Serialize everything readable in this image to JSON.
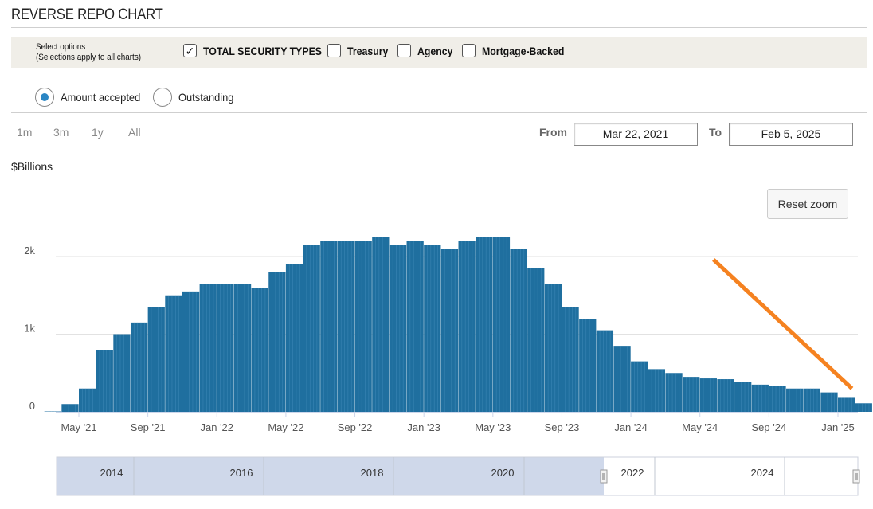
{
  "title": "REVERSE REPO CHART",
  "options": {
    "select_label_line1": "Select options",
    "select_label_line2": "(Selections apply to all charts)",
    "checkboxes": [
      {
        "label": "TOTAL SECURITY TYPES",
        "checked": true
      },
      {
        "label": "Treasury",
        "checked": false
      },
      {
        "label": "Agency",
        "checked": false
      },
      {
        "label": "Mortgage-Backed",
        "checked": false
      }
    ]
  },
  "radios": [
    {
      "label": "Amount accepted",
      "selected": true
    },
    {
      "label": "Outstanding",
      "selected": false
    }
  ],
  "range_buttons": [
    "1m",
    "3m",
    "1y",
    "All"
  ],
  "dates": {
    "from_label": "From",
    "from_value": "Mar 22, 2021",
    "to_label": "To",
    "to_value": "Feb 5, 2025"
  },
  "reset_zoom_label": "Reset zoom",
  "colors": {
    "bars": "#1f6f9f",
    "annotation_line": "#f58220",
    "navigator_fill": "#cfd8ea"
  },
  "chart_data": {
    "type": "bar",
    "ylabel": "$Billions",
    "ylim": [
      0,
      2500
    ],
    "y_ticks": [
      {
        "value": 0,
        "label": "0"
      },
      {
        "value": 1000,
        "label": "1k"
      },
      {
        "value": 2000,
        "label": "2k"
      }
    ],
    "x_ticks": [
      "May '21",
      "Sep '21",
      "Jan '22",
      "May '22",
      "Sep '22",
      "Jan '23",
      "May '23",
      "Sep '23",
      "Jan '24",
      "May '24",
      "Sep '24",
      "Jan '25"
    ],
    "series": [
      {
        "dates": [
          "2021-03",
          "2021-04",
          "2021-05",
          "2021-06",
          "2021-07",
          "2021-08",
          "2021-09",
          "2021-10",
          "2021-11",
          "2021-12",
          "2022-01",
          "2022-02",
          "2022-03",
          "2022-04",
          "2022-05",
          "2022-06",
          "2022-07",
          "2022-08",
          "2022-09",
          "2022-10",
          "2022-11",
          "2022-12",
          "2023-01",
          "2023-02",
          "2023-03",
          "2023-04",
          "2023-05",
          "2023-06",
          "2023-07",
          "2023-08",
          "2023-09",
          "2023-10",
          "2023-11",
          "2023-12",
          "2024-01",
          "2024-02",
          "2024-03",
          "2024-04",
          "2024-05",
          "2024-06",
          "2024-07",
          "2024-08",
          "2024-09",
          "2024-10",
          "2024-11",
          "2024-12",
          "2025-01",
          "2025-02"
        ],
        "values": [
          5,
          100,
          300,
          800,
          1000,
          1150,
          1350,
          1500,
          1550,
          1650,
          1650,
          1650,
          1600,
          1800,
          1900,
          2150,
          2200,
          2200,
          2200,
          2250,
          2150,
          2200,
          2150,
          2100,
          2200,
          2250,
          2250,
          2100,
          1850,
          1650,
          1350,
          1200,
          1050,
          850,
          650,
          550,
          500,
          450,
          430,
          420,
          380,
          350,
          330,
          300,
          300,
          250,
          180,
          110
        ]
      }
    ],
    "annotation": "orange trend line, downward, from May '24 to Jan '25",
    "navigator": {
      "labels": [
        "2014",
        "2016",
        "2018",
        "2020",
        "2022",
        "2024"
      ]
    }
  }
}
